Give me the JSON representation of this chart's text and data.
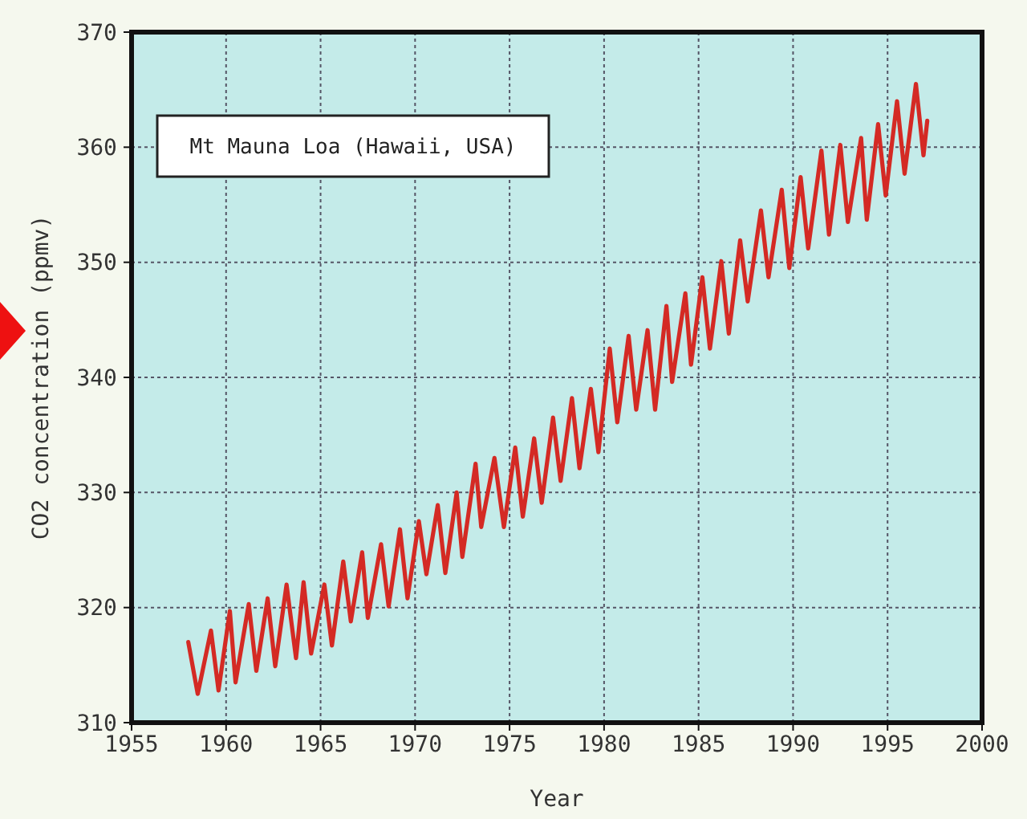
{
  "chart_data": {
    "type": "line",
    "xlabel": "Year",
    "ylabel": "CO2 concentration (ppmv)",
    "annotations": [
      "Mt Mauna Loa (Hawaii, USA)"
    ],
    "xlim": [
      1955,
      2000
    ],
    "xticks": [
      1955,
      1960,
      1965,
      1970,
      1975,
      1980,
      1985,
      1990,
      1995,
      2000
    ],
    "ylim": [
      310,
      370
    ],
    "yticks": [
      310,
      320,
      330,
      340,
      350,
      360,
      370
    ],
    "grid": true,
    "line_style": "solid",
    "marker": "none",
    "series": [
      {
        "color": "#d42a24",
        "x": [
          1958.0,
          1958.5,
          1959.2,
          1959.6,
          1960.2,
          1960.5,
          1961.2,
          1961.6,
          1962.2,
          1962.6,
          1963.2,
          1963.7,
          1964.1,
          1964.5,
          1965.2,
          1965.6,
          1966.2,
          1966.6,
          1967.2,
          1967.5,
          1968.2,
          1968.6,
          1969.2,
          1969.6,
          1970.2,
          1970.6,
          1971.2,
          1971.6,
          1972.2,
          1972.5,
          1973.2,
          1973.5,
          1974.2,
          1974.7,
          1975.3,
          1975.7,
          1976.3,
          1976.7,
          1977.3,
          1977.7,
          1978.3,
          1978.7,
          1979.3,
          1979.7,
          1980.3,
          1980.7,
          1981.3,
          1981.7,
          1982.3,
          1982.7,
          1983.3,
          1983.6,
          1984.3,
          1984.6,
          1985.2,
          1985.6,
          1986.2,
          1986.6,
          1987.2,
          1987.6,
          1988.3,
          1988.7,
          1989.4,
          1989.8,
          1990.4,
          1990.8,
          1991.5,
          1991.9,
          1992.5,
          1992.9,
          1993.6,
          1993.9,
          1994.5,
          1994.9,
          1995.5,
          1995.9,
          1996.5,
          1996.9,
          1997.1
        ],
        "values": [
          317.0,
          312.5,
          318.0,
          312.8,
          319.7,
          313.5,
          320.3,
          314.5,
          320.8,
          314.9,
          322.0,
          315.6,
          322.2,
          316.0,
          322.0,
          316.7,
          324.0,
          318.8,
          324.8,
          319.1,
          325.5,
          320.1,
          326.8,
          320.8,
          327.5,
          322.9,
          328.9,
          323.0,
          330.0,
          324.4,
          332.5,
          327.0,
          333.0,
          327.0,
          333.9,
          327.9,
          334.7,
          329.1,
          336.5,
          331.0,
          338.2,
          332.1,
          339.0,
          333.5,
          342.5,
          336.1,
          343.6,
          337.2,
          344.1,
          337.2,
          346.2,
          339.6,
          347.3,
          341.1,
          348.7,
          342.5,
          350.1,
          343.8,
          351.9,
          346.6,
          354.5,
          348.7,
          356.3,
          349.5,
          357.4,
          351.2,
          359.7,
          352.4,
          360.2,
          353.5,
          360.8,
          353.7,
          362.0,
          355.8,
          364.0,
          357.7,
          365.5,
          359.3,
          362.3
        ]
      }
    ]
  }
}
